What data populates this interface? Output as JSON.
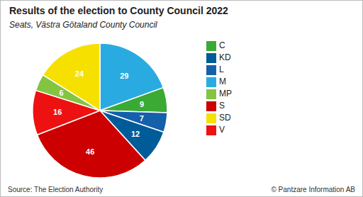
{
  "chart_data": {
    "type": "pie",
    "title": "Results of the election to County Council 2022",
    "subtitle": "Seats, Västra Götaland County Council",
    "categories": [
      "M",
      "C",
      "L",
      "KD",
      "S",
      "V",
      "MP",
      "SD"
    ],
    "values": [
      29,
      9,
      7,
      12,
      46,
      16,
      6,
      24
    ],
    "colors": [
      "#29ABE2",
      "#3AAA35",
      "#1560AB",
      "#005B99",
      "#CC0000",
      "#EE1111",
      "#83C441",
      "#F5E000"
    ],
    "data_labels": true,
    "legend": "right",
    "annotations": [
      "Source: The Election Authority",
      "© Pantzare Information AB"
    ]
  }
}
